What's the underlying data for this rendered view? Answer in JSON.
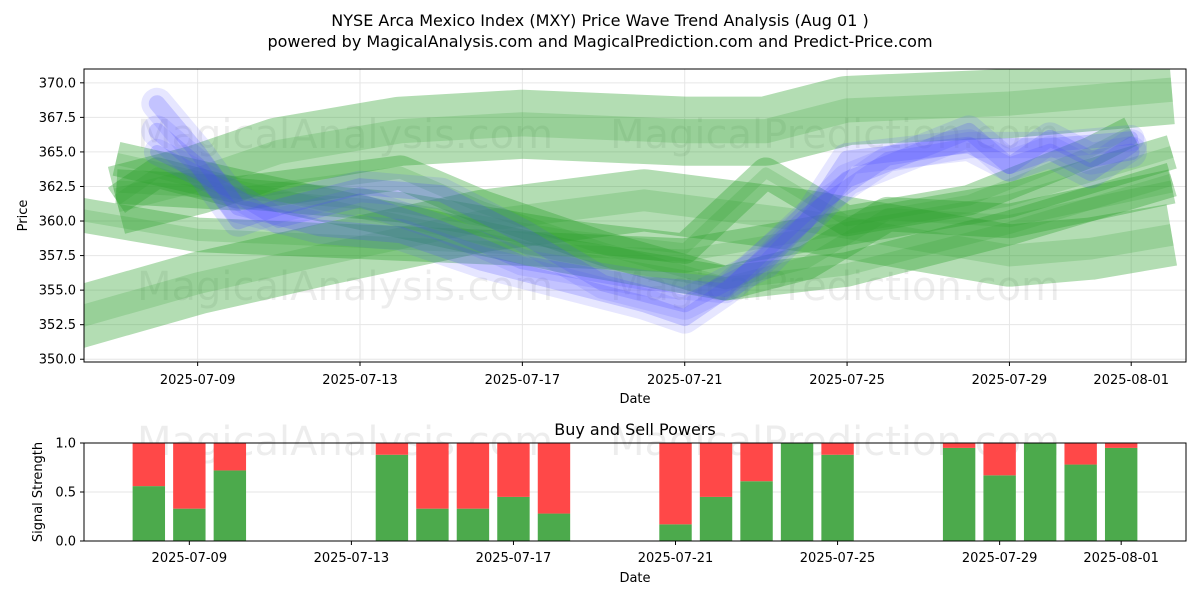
{
  "title_line1": "NYSE Arca Mexico Index (MXY) Price Wave Trend Analysis (Aug 01 )",
  "title_line2": "powered by MagicalAnalysis.com and MagicalPrediction.com and Predict-Price.com",
  "watermarks": [
    "MagicalAnalysis.com",
    "MagicalPrediction.com"
  ],
  "colors": {
    "green": "#2ca02c",
    "blue": "#4b4bff",
    "buy": "#4caa4c",
    "sell": "#ff4848"
  },
  "chart_data": [
    {
      "type": "line",
      "title": "",
      "xlabel": "Date",
      "ylabel": "Price",
      "x_ticks": [
        "2025-07-09",
        "2025-07-13",
        "2025-07-17",
        "2025-07-21",
        "2025-07-25",
        "2025-07-29",
        "2025-08-01"
      ],
      "y_ticks": [
        350.0,
        352.5,
        355.0,
        357.5,
        360.0,
        362.5,
        365.0,
        367.5,
        370.0
      ],
      "xlim": [
        "2025-07-06",
        "2025-08-02"
      ],
      "ylim": [
        349.8,
        371.0
      ],
      "grid": true,
      "series": [
        {
          "color": "green",
          "band": 4.5,
          "points": [
            [
              "2025-07-06",
              353.0
            ],
            [
              "2025-07-09",
              355.5
            ],
            [
              "2025-07-12",
              357.5
            ],
            [
              "2025-07-16",
              360.0
            ],
            [
              "2025-07-20",
              361.5
            ],
            [
              "2025-07-24",
              360.0
            ],
            [
              "2025-07-29",
              357.5
            ],
            [
              "2025-07-31",
              358.0
            ],
            [
              "2025-08-02",
              359.0
            ]
          ]
        },
        {
          "color": "green",
          "band": 5.0,
          "points": [
            [
              "2025-07-07",
              361.5
            ],
            [
              "2025-07-09",
              363.0
            ],
            [
              "2025-07-11",
              365.0
            ],
            [
              "2025-07-14",
              366.5
            ],
            [
              "2025-07-17",
              367.0
            ],
            [
              "2025-07-21",
              366.5
            ],
            [
              "2025-07-23",
              366.5
            ],
            [
              "2025-07-25",
              368.0
            ],
            [
              "2025-07-29",
              368.5
            ],
            [
              "2025-08-02",
              369.5
            ]
          ]
        },
        {
          "color": "green",
          "band": 2.5,
          "points": [
            [
              "2025-07-07",
              364.5
            ],
            [
              "2025-07-10",
              362.5
            ],
            [
              "2025-07-14",
              360.0
            ],
            [
              "2025-07-18",
              357.5
            ],
            [
              "2025-07-22",
              355.5
            ],
            [
              "2025-07-25",
              356.5
            ],
            [
              "2025-07-29",
              359.5
            ],
            [
              "2025-08-02",
              363.0
            ]
          ]
        },
        {
          "color": "green",
          "band": 2.5,
          "points": [
            [
              "2025-07-06",
              360.5
            ],
            [
              "2025-07-09",
              359.0
            ],
            [
              "2025-07-13",
              358.5
            ],
            [
              "2025-07-17",
              358.0
            ],
            [
              "2025-07-21",
              357.5
            ],
            [
              "2025-07-25",
              359.5
            ],
            [
              "2025-07-29",
              361.5
            ],
            [
              "2025-08-02",
              365.0
            ]
          ]
        },
        {
          "color": "green",
          "band": 2.5,
          "points": [
            [
              "2025-07-07",
              362.5
            ],
            [
              "2025-07-10",
              362.0
            ],
            [
              "2025-07-14",
              363.5
            ],
            [
              "2025-07-16",
              361.0
            ],
            [
              "2025-07-19",
              358.0
            ],
            [
              "2025-07-22",
              355.5
            ],
            [
              "2025-07-24",
              357.0
            ],
            [
              "2025-07-26",
              360.5
            ],
            [
              "2025-07-29",
              360.0
            ],
            [
              "2025-08-02",
              362.5
            ]
          ]
        },
        {
          "color": "green",
          "band": 2.2,
          "points": [
            [
              "2025-07-07",
              361.5
            ],
            [
              "2025-07-08",
              363.5
            ],
            [
              "2025-07-10",
              362.0
            ],
            [
              "2025-07-14",
              361.0
            ],
            [
              "2025-07-18",
              359.0
            ],
            [
              "2025-07-21",
              358.0
            ],
            [
              "2025-07-23",
              363.5
            ],
            [
              "2025-07-25",
              360.0
            ],
            [
              "2025-07-28",
              361.5
            ],
            [
              "2025-07-31",
              365.0
            ],
            [
              "2025-08-01",
              366.5
            ]
          ]
        },
        {
          "color": "blue",
          "band": 1.2,
          "points": [
            [
              "2025-07-08",
              368.5
            ],
            [
              "2025-07-09",
              365.0
            ],
            [
              "2025-07-10",
              361.0
            ],
            [
              "2025-07-12",
              359.5
            ],
            [
              "2025-07-14",
              359.0
            ],
            [
              "2025-07-16",
              357.0
            ],
            [
              "2025-07-18",
              355.5
            ],
            [
              "2025-07-20",
              354.0
            ],
            [
              "2025-07-21",
              353.0
            ],
            [
              "2025-07-22",
              355.0
            ],
            [
              "2025-07-24",
              360.0
            ],
            [
              "2025-07-25",
              364.5
            ],
            [
              "2025-07-28",
              365.5
            ],
            [
              "2025-07-29",
              364.0
            ],
            [
              "2025-07-30",
              365.0
            ],
            [
              "2025-07-31",
              363.5
            ],
            [
              "2025-08-01",
              365.5
            ]
          ]
        },
        {
          "color": "blue",
          "band": 1.2,
          "points": [
            [
              "2025-07-08",
              366.5
            ],
            [
              "2025-07-09",
              364.0
            ],
            [
              "2025-07-10",
              360.0
            ],
            [
              "2025-07-11",
              361.0
            ],
            [
              "2025-07-13",
              362.5
            ],
            [
              "2025-07-15",
              362.0
            ],
            [
              "2025-07-17",
              359.0
            ],
            [
              "2025-07-19",
              355.5
            ],
            [
              "2025-07-21",
              354.0
            ],
            [
              "2025-07-23",
              357.0
            ],
            [
              "2025-07-25",
              363.0
            ],
            [
              "2025-07-28",
              366.5
            ],
            [
              "2025-07-29",
              364.0
            ],
            [
              "2025-07-30",
              366.0
            ],
            [
              "2025-07-31",
              364.5
            ],
            [
              "2025-08-01",
              365.0
            ]
          ]
        },
        {
          "color": "blue",
          "band": 1.0,
          "points": [
            [
              "2025-07-08",
              365.0
            ],
            [
              "2025-07-09",
              363.5
            ],
            [
              "2025-07-11",
              360.0
            ],
            [
              "2025-07-13",
              361.5
            ],
            [
              "2025-07-15",
              359.5
            ],
            [
              "2025-07-17",
              357.0
            ],
            [
              "2025-07-20",
              355.5
            ],
            [
              "2025-07-22",
              355.0
            ],
            [
              "2025-07-24",
              360.5
            ],
            [
              "2025-07-26",
              364.5
            ],
            [
              "2025-07-28",
              365.5
            ],
            [
              "2025-07-30",
              365.5
            ],
            [
              "2025-08-01",
              366.0
            ]
          ]
        }
      ]
    },
    {
      "type": "bar",
      "title": "Buy and Sell Powers",
      "xlabel": "Date",
      "ylabel": "Signal Strength",
      "x_ticks": [
        "2025-07-09",
        "2025-07-13",
        "2025-07-17",
        "2025-07-21",
        "2025-07-25",
        "2025-07-29",
        "2025-08-01"
      ],
      "y_ticks": [
        0.0,
        0.5,
        1.0
      ],
      "ylim": [
        0,
        1
      ],
      "grid": true,
      "bars": [
        {
          "date": "2025-07-08",
          "buy": 0.56,
          "sell": 0.44
        },
        {
          "date": "2025-07-09",
          "buy": 0.33,
          "sell": 0.67
        },
        {
          "date": "2025-07-10",
          "buy": 0.72,
          "sell": 0.28
        },
        {
          "date": "2025-07-14",
          "buy": 0.88,
          "sell": 0.12
        },
        {
          "date": "2025-07-15",
          "buy": 0.33,
          "sell": 0.67
        },
        {
          "date": "2025-07-16",
          "buy": 0.33,
          "sell": 0.67
        },
        {
          "date": "2025-07-17",
          "buy": 0.45,
          "sell": 0.55
        },
        {
          "date": "2025-07-18",
          "buy": 0.28,
          "sell": 0.72
        },
        {
          "date": "2025-07-21",
          "buy": 0.17,
          "sell": 0.83
        },
        {
          "date": "2025-07-22",
          "buy": 0.45,
          "sell": 0.55
        },
        {
          "date": "2025-07-23",
          "buy": 0.61,
          "sell": 0.39
        },
        {
          "date": "2025-07-24",
          "buy": 1.0,
          "sell": 0.0
        },
        {
          "date": "2025-07-25",
          "buy": 0.88,
          "sell": 0.12
        },
        {
          "date": "2025-07-28",
          "buy": 0.95,
          "sell": 0.05
        },
        {
          "date": "2025-07-29",
          "buy": 0.67,
          "sell": 0.33
        },
        {
          "date": "2025-07-30",
          "buy": 1.0,
          "sell": 0.0
        },
        {
          "date": "2025-07-31",
          "buy": 0.78,
          "sell": 0.22
        },
        {
          "date": "2025-08-01",
          "buy": 0.95,
          "sell": 0.05
        }
      ]
    }
  ]
}
